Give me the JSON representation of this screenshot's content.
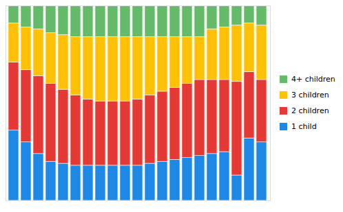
{
  "chart_data": {
    "type": "bar",
    "stacked": true,
    "categories": [
      null,
      null,
      null,
      null,
      null,
      null,
      null,
      null,
      null,
      null,
      null,
      null,
      null,
      null,
      null,
      null,
      null,
      null,
      null,
      null,
      null
    ],
    "series": [
      {
        "name": "1 child",
        "color": "#1E88E5",
        "values": [
          36,
          30,
          24,
          20,
          19,
          18,
          18,
          18,
          18,
          18,
          18,
          19,
          20,
          21,
          22,
          23,
          24,
          25,
          13,
          32,
          30
        ]
      },
      {
        "name": "2 children",
        "color": "#E53935",
        "values": [
          35,
          37,
          40,
          40,
          38,
          36,
          34,
          33,
          33,
          33,
          34,
          35,
          36,
          37,
          38,
          39,
          38,
          37,
          48,
          34,
          32
        ]
      },
      {
        "name": "3 children",
        "color": "#FFC107",
        "values": [
          20,
          22,
          24,
          26,
          28,
          30,
          32,
          33,
          33,
          33,
          32,
          30,
          28,
          26,
          24,
          22,
          26,
          27,
          29,
          25,
          28
        ]
      },
      {
        "name": "4+ children",
        "color": "#66BB6A",
        "values": [
          9,
          11,
          12,
          14,
          15,
          16,
          16,
          16,
          16,
          16,
          16,
          16,
          16,
          16,
          16,
          16,
          12,
          11,
          10,
          9,
          10
        ]
      }
    ],
    "ylim": [
      0,
      100
    ],
    "yticks": [],
    "grid": false,
    "legend": "right",
    "tick_labels": false
  }
}
